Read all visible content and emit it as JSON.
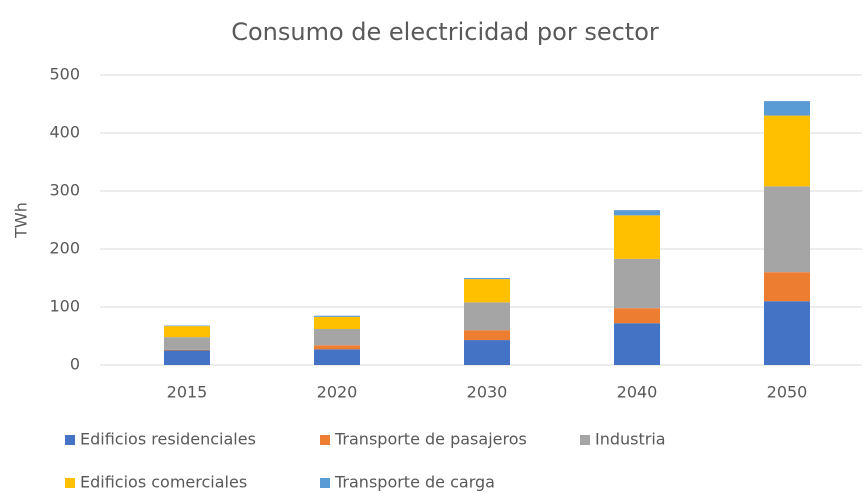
{
  "chart_data": {
    "type": "stacked_bar",
    "title": "Consumo de electricidad por sector",
    "y_label": "TWh",
    "categories": [
      "2015",
      "2020",
      "2030",
      "2040",
      "2050"
    ],
    "series": [
      {
        "name": "Edificios residenciales",
        "color": "#4472c4",
        "values": [
          25,
          27,
          43,
          72,
          110
        ]
      },
      {
        "name": "Transporte de pasajeros",
        "color": "#ed7d31",
        "values": [
          1,
          7,
          17,
          26,
          50
        ]
      },
      {
        "name": "Industria",
        "color": "#a5a5a5",
        "values": [
          22,
          28,
          48,
          85,
          148
        ]
      },
      {
        "name": "Edificios comerciales",
        "color": "#ffc000",
        "values": [
          19,
          21,
          40,
          75,
          122
        ]
      },
      {
        "name": "Transporte de carga",
        "color": "#5b9bd5",
        "values": [
          1,
          2,
          2,
          9,
          25
        ]
      }
    ],
    "ylim": [
      0,
      500
    ],
    "yticks": [
      0,
      100,
      200,
      300,
      400,
      500
    ],
    "grid": true
  }
}
